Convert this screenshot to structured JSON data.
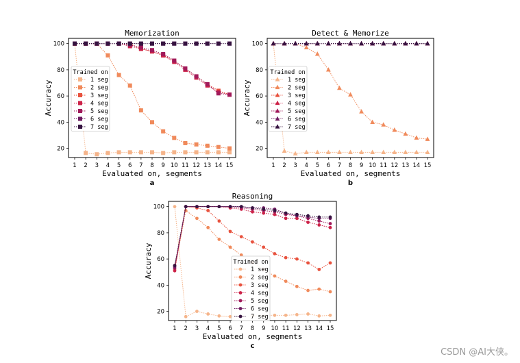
{
  "colors": {
    "1 seg": "#f5b48a",
    "2 seg": "#f08a5b",
    "3 seg": "#e8523e",
    "4 seg": "#cc2147",
    "5 seg": "#a11a5b",
    "6 seg": "#6e1a60",
    "7 seg": "#361441"
  },
  "watermark": "CSDN @AI大侠。",
  "chart_data": [
    {
      "panel": "a",
      "type": "line",
      "marker": "square",
      "title": "Memorization",
      "xlabel": "Evaluated on, segments",
      "ylabel": "Accuracy",
      "legend_title": "Trained on",
      "xlim": [
        1,
        15
      ],
      "ylim": [
        13,
        104
      ],
      "yticks": [
        20,
        40,
        60,
        80,
        100
      ],
      "xticks": [
        1,
        2,
        3,
        4,
        5,
        6,
        7,
        8,
        9,
        10,
        11,
        12,
        13,
        14,
        15
      ],
      "series": [
        {
          "name": "1 seg",
          "x": [
            1,
            2,
            3,
            4,
            5,
            6,
            7,
            8,
            9,
            10,
            11,
            12,
            13,
            14,
            15
          ],
          "values": [
            100,
            16.5,
            15.5,
            16.5,
            17,
            17,
            17,
            17,
            16.5,
            17,
            17,
            17,
            17,
            17,
            17
          ]
        },
        {
          "name": "2 seg",
          "x": [
            1,
            2,
            3,
            4,
            5,
            6,
            7,
            8,
            9,
            10,
            11,
            12,
            13,
            14,
            15
          ],
          "values": [
            100,
            100,
            100,
            91,
            76,
            68,
            49,
            40,
            33,
            28,
            24,
            23,
            22,
            21,
            20
          ]
        },
        {
          "name": "3 seg",
          "x": [
            1,
            2,
            3,
            4,
            5,
            6,
            7,
            8,
            9,
            10,
            11,
            12,
            13,
            14,
            15
          ],
          "values": [
            100,
            100,
            100,
            100,
            100,
            100,
            96,
            94,
            91,
            87,
            81,
            75,
            69,
            64,
            61
          ]
        },
        {
          "name": "4 seg",
          "x": [
            1,
            2,
            3,
            4,
            5,
            6,
            7,
            8,
            9,
            10,
            11,
            12,
            13,
            14,
            15
          ],
          "values": [
            100,
            100,
            100,
            100,
            100,
            98,
            96,
            94,
            91,
            86,
            80,
            74,
            68,
            63,
            61
          ]
        },
        {
          "name": "5 seg",
          "x": [
            1,
            2,
            3,
            4,
            5,
            6,
            7,
            8,
            9,
            10,
            11,
            12,
            13,
            14,
            15
          ],
          "values": [
            100,
            100,
            100,
            100,
            100,
            99,
            97,
            95,
            92,
            87,
            81,
            75,
            69,
            62,
            61
          ]
        },
        {
          "name": "6 seg",
          "x": [
            1,
            2,
            3,
            4,
            5,
            6,
            7,
            8,
            9,
            10,
            11,
            12,
            13,
            14,
            15
          ],
          "values": [
            100,
            100,
            100,
            100,
            100,
            100,
            100,
            100,
            100,
            100,
            100,
            100,
            100,
            100,
            100
          ]
        },
        {
          "name": "7 seg",
          "x": [
            1,
            2,
            3,
            4,
            5,
            6,
            7,
            8,
            9,
            10,
            11,
            12,
            13,
            14,
            15
          ],
          "values": [
            100,
            100,
            100,
            100,
            100,
            100,
            100,
            100,
            100,
            100,
            100,
            100,
            100,
            100,
            100
          ]
        }
      ]
    },
    {
      "panel": "b",
      "type": "line",
      "marker": "triangle",
      "title": "Detect & Memorize",
      "xlabel": "Evaluated on, segments",
      "ylabel": "Accuracy",
      "legend_title": "Trained on",
      "xlim": [
        1,
        15
      ],
      "ylim": [
        13,
        104
      ],
      "yticks": [
        20,
        40,
        60,
        80,
        100
      ],
      "xticks": [
        1,
        2,
        3,
        4,
        5,
        6,
        7,
        8,
        9,
        10,
        11,
        12,
        13,
        14,
        15
      ],
      "series": [
        {
          "name": "1 seg",
          "x": [
            1,
            2,
            3,
            4,
            5,
            6,
            7,
            8,
            9,
            10,
            11,
            12,
            13,
            14,
            15
          ],
          "values": [
            100,
            18,
            16,
            17,
            17,
            17,
            17,
            17,
            17,
            17,
            17,
            17,
            17,
            17,
            17
          ]
        },
        {
          "name": "2 seg",
          "x": [
            1,
            2,
            3,
            4,
            5,
            6,
            7,
            8,
            9,
            10,
            11,
            12,
            13,
            14,
            15
          ],
          "values": [
            100,
            100,
            100,
            97,
            92,
            80,
            66,
            61,
            48,
            40,
            38,
            34,
            31,
            28,
            27
          ]
        },
        {
          "name": "3 seg",
          "x": [
            1,
            2,
            3,
            4,
            5,
            6,
            7,
            8,
            9,
            10,
            11,
            12,
            13,
            14,
            15
          ],
          "values": [
            100,
            100,
            100,
            100,
            100,
            100,
            100,
            100,
            100,
            100,
            100,
            100,
            100,
            100,
            100
          ]
        },
        {
          "name": "4 seg",
          "x": [
            1,
            2,
            3,
            4,
            5,
            6,
            7,
            8,
            9,
            10,
            11,
            12,
            13,
            14,
            15
          ],
          "values": [
            100,
            100,
            100,
            100,
            100,
            100,
            100,
            100,
            100,
            100,
            100,
            100,
            100,
            100,
            100
          ]
        },
        {
          "name": "5 seg",
          "x": [
            1,
            2,
            3,
            4,
            5,
            6,
            7,
            8,
            9,
            10,
            11,
            12,
            13,
            14,
            15
          ],
          "values": [
            100,
            100,
            100,
            100,
            100,
            100,
            100,
            100,
            100,
            100,
            100,
            100,
            100,
            100,
            100
          ]
        },
        {
          "name": "6 seg",
          "x": [
            1,
            2,
            3,
            4,
            5,
            6,
            7,
            8,
            9,
            10,
            11,
            12,
            13,
            14,
            15
          ],
          "values": [
            100,
            100,
            100,
            100,
            100,
            100,
            100,
            100,
            100,
            100,
            100,
            100,
            100,
            100,
            100
          ]
        },
        {
          "name": "7 seg",
          "x": [
            1,
            2,
            3,
            4,
            5,
            6,
            7,
            8,
            9,
            10,
            11,
            12,
            13,
            14,
            15
          ],
          "values": [
            100,
            100,
            100,
            100,
            100,
            100,
            100,
            100,
            100,
            100,
            100,
            100,
            100,
            100,
            100
          ]
        }
      ]
    },
    {
      "panel": "c",
      "type": "line",
      "marker": "circle",
      "title": "Reasoning",
      "xlabel": "Evaluated on, segments",
      "ylabel": "Accuracy",
      "legend_title": "Trained on",
      "xlim": [
        1,
        15
      ],
      "ylim": [
        13,
        104
      ],
      "yticks": [
        20,
        40,
        60,
        80,
        100
      ],
      "xticks": [
        1,
        2,
        3,
        4,
        5,
        6,
        7,
        8,
        9,
        10,
        11,
        12,
        13,
        14,
        15
      ],
      "series": [
        {
          "name": "1 seg",
          "x": [
            1,
            2,
            3,
            4,
            5,
            6,
            7,
            8,
            9,
            10,
            11,
            12,
            13,
            14,
            15
          ],
          "values": [
            100,
            16,
            20,
            18,
            16.5,
            16,
            16,
            16.5,
            17,
            17,
            17,
            17.5,
            18,
            16.5,
            17
          ]
        },
        {
          "name": "2 seg",
          "x": [
            1,
            2,
            3,
            4,
            5,
            6,
            7,
            8,
            9,
            10,
            11,
            12,
            13,
            14,
            15
          ],
          "values": [
            52,
            97,
            91,
            84,
            75,
            69,
            63,
            57,
            52,
            47,
            43,
            39,
            36,
            37,
            35
          ]
        },
        {
          "name": "3 seg",
          "x": [
            1,
            2,
            3,
            4,
            5,
            6,
            7,
            8,
            9,
            10,
            11,
            12,
            13,
            14,
            15
          ],
          "values": [
            55,
            100,
            99,
            97,
            89,
            81,
            77,
            73,
            69,
            64,
            61,
            60,
            57,
            52,
            57
          ]
        },
        {
          "name": "4 seg",
          "x": [
            1,
            2,
            3,
            4,
            5,
            6,
            7,
            8,
            9,
            10,
            11,
            12,
            13,
            14,
            15
          ],
          "values": [
            51,
            100,
            100,
            100,
            100,
            99,
            98,
            96,
            95,
            94,
            91,
            91,
            88,
            86,
            84
          ]
        },
        {
          "name": "5 seg",
          "x": [
            1,
            2,
            3,
            4,
            5,
            6,
            7,
            8,
            9,
            10,
            11,
            12,
            13,
            14,
            15
          ],
          "values": [
            53,
            100,
            100,
            100,
            100,
            100,
            99,
            98,
            97,
            96,
            94,
            93,
            91,
            89,
            87
          ]
        },
        {
          "name": "6 seg",
          "x": [
            1,
            2,
            3,
            4,
            5,
            6,
            7,
            8,
            9,
            10,
            11,
            12,
            13,
            14,
            15
          ],
          "values": [
            54,
            100,
            100,
            100,
            100,
            100,
            100,
            99,
            99,
            98,
            95,
            93,
            92,
            91,
            91
          ]
        },
        {
          "name": "7 seg",
          "x": [
            1,
            2,
            3,
            4,
            5,
            6,
            7,
            8,
            9,
            10,
            11,
            12,
            13,
            14,
            15
          ],
          "values": [
            55,
            100,
            100,
            100,
            100,
            100,
            100,
            99,
            98,
            97,
            95,
            94,
            93,
            92,
            92
          ]
        }
      ]
    }
  ]
}
